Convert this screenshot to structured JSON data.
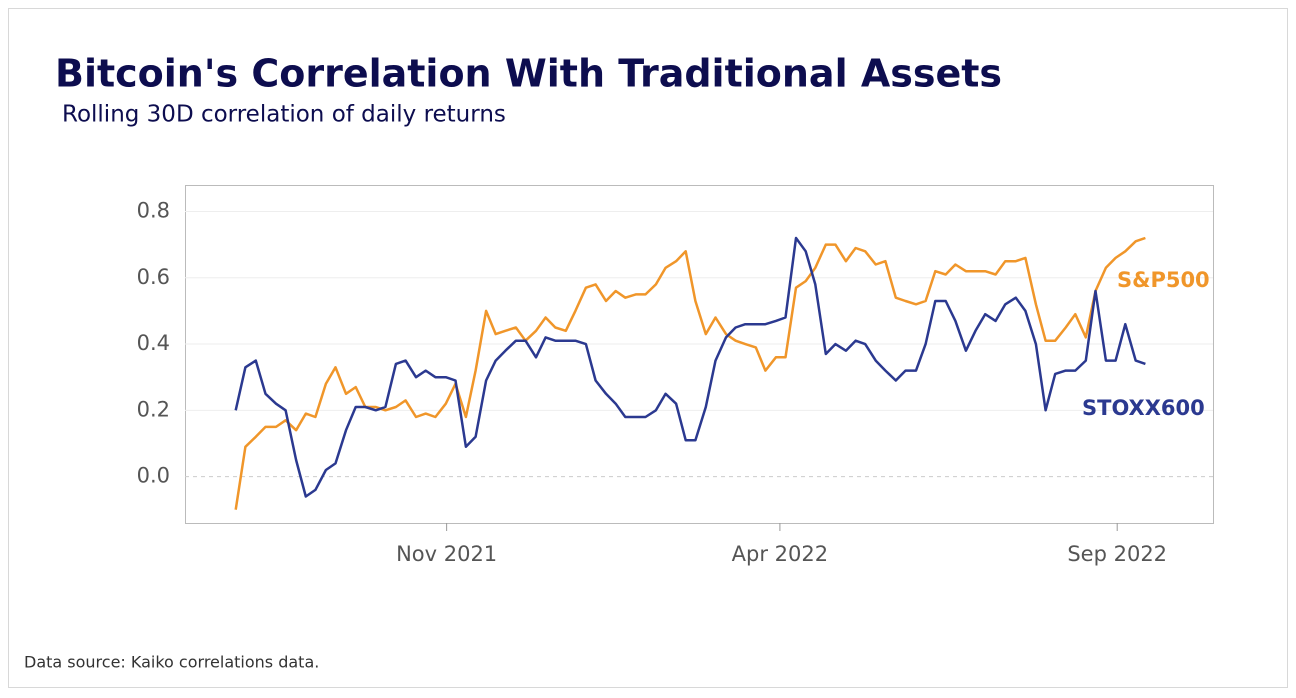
{
  "chart_data": {
    "type": "line",
    "title": "Bitcoin's Correlation With Traditional Assets",
    "subtitle": "Rolling 30D correlation of daily returns",
    "source": "Data source: Kaiko correlations data.",
    "x": [
      2021.571,
      2021.583,
      2021.596,
      2021.608,
      2021.621,
      2021.633,
      2021.646,
      2021.658,
      2021.67,
      2021.683,
      2021.695,
      2021.708,
      2021.72,
      2021.732,
      2021.745,
      2021.757,
      2021.77,
      2021.782,
      2021.795,
      2021.807,
      2021.819,
      2021.832,
      2021.844,
      2021.857,
      2021.869,
      2021.882,
      2021.894,
      2021.906,
      2021.919,
      2021.931,
      2021.944,
      2021.956,
      2021.968,
      2021.981,
      2021.993,
      2022.006,
      2022.018,
      2022.031,
      2022.043,
      2022.055,
      2022.068,
      2022.08,
      2022.093,
      2022.105,
      2022.118,
      2022.13,
      2022.142,
      2022.155,
      2022.167,
      2022.18,
      2022.192,
      2022.204,
      2022.217,
      2022.229,
      2022.242,
      2022.254,
      2022.267,
      2022.279,
      2022.291,
      2022.304,
      2022.316,
      2022.329,
      2022.341,
      2022.353,
      2022.366,
      2022.378,
      2022.391,
      2022.403,
      2022.416,
      2022.428,
      2022.44,
      2022.453,
      2022.465,
      2022.478,
      2022.49,
      2022.502,
      2022.515,
      2022.527,
      2022.54,
      2022.552,
      2022.565,
      2022.577,
      2022.589,
      2022.602,
      2022.614,
      2022.627,
      2022.639,
      2022.652,
      2022.664,
      2022.676,
      2022.689,
      2022.701
    ],
    "series": [
      {
        "name": "S&P500",
        "color": "#f0962a",
        "values": [
          -0.1,
          0.09,
          0.12,
          0.15,
          0.15,
          0.17,
          0.14,
          0.19,
          0.18,
          0.28,
          0.33,
          0.25,
          0.27,
          0.21,
          0.21,
          0.2,
          0.21,
          0.23,
          0.18,
          0.19,
          0.18,
          0.22,
          0.28,
          0.18,
          0.32,
          0.5,
          0.43,
          0.44,
          0.45,
          0.41,
          0.44,
          0.48,
          0.45,
          0.44,
          0.5,
          0.57,
          0.58,
          0.53,
          0.56,
          0.54,
          0.55,
          0.55,
          0.58,
          0.63,
          0.65,
          0.68,
          0.53,
          0.43,
          0.48,
          0.43,
          0.41,
          0.4,
          0.39,
          0.32,
          0.36,
          0.36,
          0.57,
          0.59,
          0.63,
          0.7,
          0.7,
          0.65,
          0.69,
          0.68,
          0.64,
          0.65,
          0.54,
          0.53,
          0.52,
          0.53,
          0.62,
          0.61,
          0.64,
          0.62,
          0.62,
          0.62,
          0.61,
          0.65,
          0.65,
          0.66,
          0.52,
          0.41,
          0.41,
          0.45,
          0.49,
          0.42,
          0.56,
          0.63,
          0.66,
          0.68,
          0.71,
          0.72
        ]
      },
      {
        "name": "STOXX600",
        "color": "#2b3990",
        "values": [
          0.2,
          0.33,
          0.35,
          0.25,
          0.22,
          0.2,
          0.05,
          -0.06,
          -0.04,
          0.02,
          0.04,
          0.14,
          0.21,
          0.21,
          0.2,
          0.21,
          0.34,
          0.35,
          0.3,
          0.32,
          0.3,
          0.3,
          0.29,
          0.09,
          0.12,
          0.29,
          0.35,
          0.38,
          0.41,
          0.41,
          0.36,
          0.42,
          0.41,
          0.41,
          0.41,
          0.4,
          0.29,
          0.25,
          0.22,
          0.18,
          0.18,
          0.18,
          0.2,
          0.25,
          0.22,
          0.11,
          0.11,
          0.21,
          0.35,
          0.42,
          0.45,
          0.46,
          0.46,
          0.46,
          0.47,
          0.48,
          0.72,
          0.68,
          0.58,
          0.37,
          0.4,
          0.38,
          0.41,
          0.4,
          0.35,
          0.32,
          0.29,
          0.32,
          0.32,
          0.4,
          0.53,
          0.53,
          0.47,
          0.38,
          0.44,
          0.49,
          0.47,
          0.52,
          0.54,
          0.5,
          0.4,
          0.2,
          0.31,
          0.32,
          0.32,
          0.35,
          0.56,
          0.35,
          0.35,
          0.46,
          0.35,
          0.34
        ]
      }
    ],
    "xlim": [
      2021.508,
      2022.785
    ],
    "xticks": [
      {
        "value": 2021.833,
        "label": "Nov 2021"
      },
      {
        "value": 2022.247,
        "label": "Apr 2022"
      },
      {
        "value": 2022.666,
        "label": "Sep 2022"
      }
    ],
    "ylim": [
      -0.14,
      0.88
    ],
    "yticks": [
      {
        "value": 0,
        "label": "0.0"
      },
      0.2,
      0.4,
      0.6,
      0.8
    ],
    "grid": true
  }
}
